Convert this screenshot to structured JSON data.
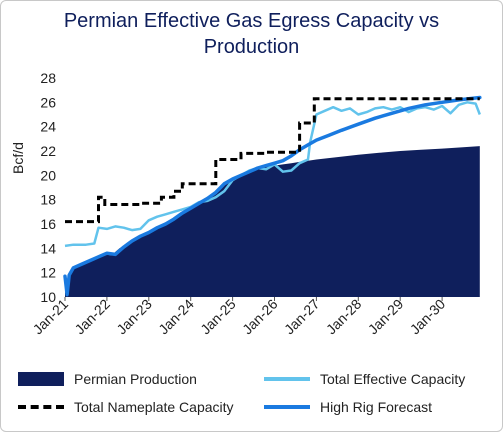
{
  "chart_data": {
    "type": "line",
    "title": "Permian Effective Gas Egress Capacity vs Production",
    "title_lines": [
      "Permian Effective Gas Egress Capacity vs",
      "Production"
    ],
    "ylabel": "Bcf/d",
    "xlabel": "",
    "ylim": [
      10,
      28
    ],
    "yticks": [
      10,
      12,
      14,
      16,
      18,
      20,
      22,
      24,
      26,
      28
    ],
    "xlim": [
      2021.0,
      2031.0
    ],
    "xtick_labels": [
      "Jan-21",
      "Jan-22",
      "Jan-23",
      "Jan-24",
      "Jan-25",
      "Jan-26",
      "Jan-27",
      "Jan-28",
      "Jan-29",
      "Jan-30"
    ],
    "xtick_years": [
      2021,
      2022,
      2023,
      2024,
      2025,
      2026,
      2027,
      2028,
      2029,
      2030
    ],
    "grid": false,
    "legend_placement": "bottom",
    "series": [
      {
        "name": "Permian Production",
        "kind": "area",
        "color": "#0f1f5c",
        "x": [
          2021.0,
          2021.1,
          2021.2,
          2021.4,
          2021.6,
          2021.8,
          2022.0,
          2022.1,
          2022.3,
          2022.5,
          2022.7,
          2022.9,
          2023.0,
          2023.2,
          2023.4,
          2023.6,
          2023.8,
          2024.0,
          2024.2,
          2024.4,
          2024.6,
          2024.8,
          2025.0,
          2025.2,
          2025.4,
          2025.6,
          2025.8,
          2026.0,
          2026.2,
          2026.4,
          2026.6,
          2026.8,
          2027.0,
          2027.5,
          2028.0,
          2028.5,
          2029.0,
          2029.5,
          2030.0,
          2030.5,
          2030.9
        ],
        "y": [
          10.3,
          11.8,
          12.3,
          12.6,
          12.9,
          13.2,
          13.5,
          13.4,
          14.0,
          14.4,
          14.9,
          15.1,
          15.4,
          15.6,
          16.0,
          16.3,
          16.8,
          17.2,
          17.6,
          18.0,
          18.5,
          19.2,
          19.6,
          19.9,
          20.2,
          20.5,
          20.7,
          20.8,
          20.9,
          21.0,
          21.1,
          21.2,
          21.3,
          21.5,
          21.7,
          21.85,
          22.0,
          22.1,
          22.2,
          22.3,
          22.4
        ]
      },
      {
        "name": "Total Effective Capacity",
        "kind": "line",
        "color": "#62c3ec",
        "x": [
          2021.0,
          2021.2,
          2021.5,
          2021.7,
          2021.8,
          2022.0,
          2022.2,
          2022.4,
          2022.6,
          2022.8,
          2023.0,
          2023.2,
          2023.4,
          2023.6,
          2023.8,
          2024.0,
          2024.2,
          2024.4,
          2024.6,
          2024.8,
          2025.0,
          2025.2,
          2025.4,
          2025.6,
          2025.8,
          2026.0,
          2026.2,
          2026.4,
          2026.6,
          2026.8,
          2026.85,
          2027.0,
          2027.2,
          2027.4,
          2027.6,
          2027.8,
          2028.0,
          2028.2,
          2028.4,
          2028.6,
          2028.8,
          2029.0,
          2029.2,
          2029.4,
          2029.6,
          2029.8,
          2030.0,
          2030.2,
          2030.4,
          2030.6,
          2030.8,
          2030.9
        ],
        "y": [
          14.2,
          14.3,
          14.3,
          14.4,
          15.7,
          15.6,
          15.8,
          15.7,
          15.5,
          15.6,
          16.3,
          16.6,
          16.8,
          17.0,
          17.2,
          17.4,
          17.8,
          17.9,
          18.2,
          18.7,
          19.6,
          20.0,
          20.4,
          20.6,
          20.5,
          20.9,
          20.3,
          20.4,
          21.0,
          21.3,
          22.7,
          25.0,
          25.3,
          25.6,
          25.3,
          25.5,
          25.0,
          25.2,
          25.5,
          25.6,
          25.4,
          25.6,
          25.2,
          25.5,
          25.6,
          25.4,
          25.7,
          25.1,
          25.8,
          26.0,
          25.9,
          25.0
        ]
      },
      {
        "name": "Total Nameplate Capacity",
        "kind": "step",
        "color": "#000000",
        "x": [
          2021.0,
          2021.8,
          2021.8,
          2021.95,
          2021.95,
          2022.8,
          2022.8,
          2023.3,
          2023.3,
          2023.6,
          2023.6,
          2023.8,
          2023.8,
          2024.6,
          2024.6,
          2025.2,
          2025.2,
          2025.8,
          2025.8,
          2026.6,
          2026.6,
          2026.95,
          2026.95,
          2030.9
        ],
        "y": [
          16.2,
          16.2,
          18.2,
          18.2,
          17.6,
          17.6,
          17.7,
          17.7,
          18.2,
          18.2,
          18.7,
          18.7,
          19.3,
          19.3,
          21.3,
          21.3,
          21.8,
          21.8,
          21.9,
          21.9,
          24.3,
          24.3,
          26.3,
          26.3
        ]
      },
      {
        "name": "High Rig Forecast",
        "kind": "line",
        "color": "#1a7ae0",
        "x": [
          2021.0,
          2021.05,
          2021.1,
          2021.2,
          2021.4,
          2021.6,
          2021.8,
          2022.0,
          2022.2,
          2022.4,
          2022.6,
          2022.8,
          2023.0,
          2023.2,
          2023.4,
          2023.6,
          2023.8,
          2024.0,
          2024.2,
          2024.4,
          2024.6,
          2024.8,
          2025.0,
          2025.2,
          2025.4,
          2025.6,
          2025.8,
          2026.0,
          2026.2,
          2026.4,
          2026.6,
          2026.8,
          2027.0,
          2027.3,
          2027.6,
          2028.0,
          2028.4,
          2028.8,
          2029.2,
          2029.6,
          2030.0,
          2030.4,
          2030.9
        ],
        "y": [
          11.7,
          10.2,
          11.8,
          12.4,
          12.7,
          13.0,
          13.3,
          13.6,
          13.5,
          14.1,
          14.6,
          15.0,
          15.3,
          15.7,
          16.0,
          16.4,
          16.9,
          17.3,
          17.7,
          18.1,
          18.6,
          19.3,
          19.7,
          20.0,
          20.3,
          20.6,
          20.8,
          21.0,
          21.2,
          21.6,
          22.1,
          22.5,
          22.9,
          23.3,
          23.7,
          24.2,
          24.7,
          25.1,
          25.5,
          25.8,
          26.0,
          26.2,
          26.4
        ]
      }
    ]
  },
  "legend": [
    {
      "label": "Permian Production",
      "style": "box",
      "color": "#0f1f5c"
    },
    {
      "label": "Total Effective Capacity",
      "style": "line",
      "color": "#62c3ec"
    },
    {
      "label": "Total Nameplate Capacity",
      "style": "dash",
      "color": "#000000"
    },
    {
      "label": "High Rig Forecast",
      "style": "line",
      "color": "#1a7ae0"
    }
  ]
}
